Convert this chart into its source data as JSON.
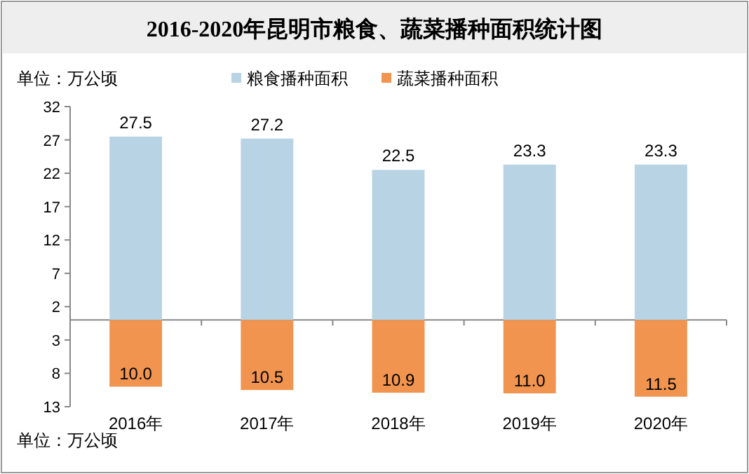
{
  "chart_data": {
    "type": "bar",
    "title": "2016-2020年昆明市粮食、蔬菜播种面积统计图",
    "categories": [
      "2016年",
      "2017年",
      "2018年",
      "2019年",
      "2020年"
    ],
    "series": [
      {
        "name": "粮食播种面积",
        "color": "#b8d3e4",
        "values": [
          27.5,
          27.2,
          22.5,
          23.3,
          23.3
        ],
        "value_labels": [
          "27.5",
          "27.2",
          "22.5",
          "23.3",
          "23.3"
        ]
      },
      {
        "name": "蔬菜播种面积",
        "color": "#f0944f",
        "axis": "y2",
        "values": [
          10.0,
          10.5,
          10.9,
          11.0,
          11.5
        ],
        "value_labels": [
          "10.0",
          "10.5",
          "10.9",
          "11.0",
          "11.5"
        ]
      }
    ],
    "ylim": [
      -13,
      32
    ],
    "yticks": [
      2,
      7,
      12,
      17,
      22,
      27,
      32
    ],
    "y2lim": [
      13,
      -32
    ],
    "y2ticks": [
      3,
      8,
      13
    ],
    "legend": "top",
    "grid": false,
    "stacked": true,
    "annotations": [
      "单位：万公顷",
      "单位：万公顷"
    ]
  }
}
